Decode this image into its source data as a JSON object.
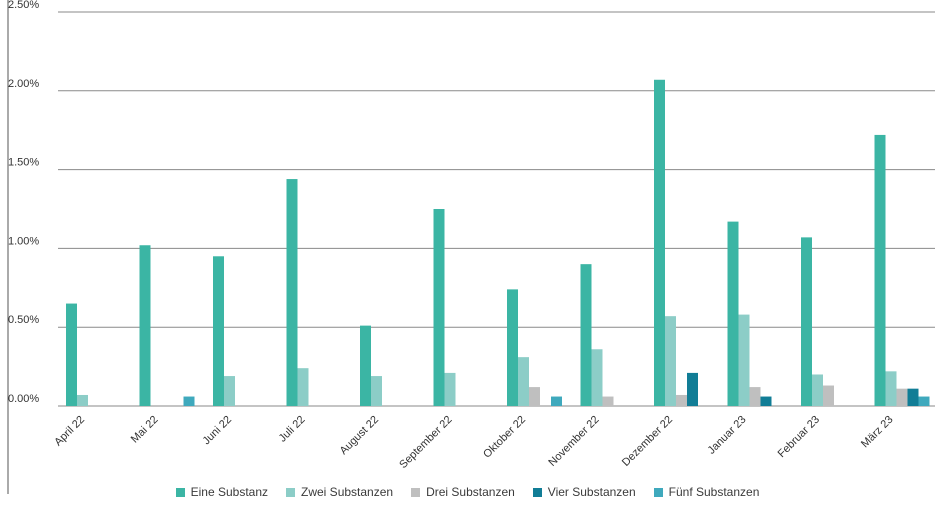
{
  "chart_data": {
    "type": "bar",
    "categories": [
      "April 22",
      "Mai 22",
      "Juni 22",
      "Juli 22",
      "August 22",
      "September 22",
      "Oktober 22",
      "November 22",
      "Dezember 22",
      "Januar 23",
      "Februar 23",
      "März 23"
    ],
    "y_tick_labels": [
      "0.00%",
      "0.50%",
      "1.00%",
      "1.50%",
      "2.00%",
      "2.50%"
    ],
    "ylim": [
      0,
      2.5
    ],
    "y_unit": "%",
    "grid": true,
    "legend_position": "bottom",
    "series": [
      {
        "name": "Eine Substanz",
        "color": "#3bb5a4",
        "values": [
          0.65,
          1.02,
          0.95,
          1.44,
          0.51,
          1.25,
          0.74,
          0.9,
          2.07,
          1.17,
          1.07,
          1.72
        ]
      },
      {
        "name": "Zwei Substanzen",
        "color": "#8ccdc7",
        "values": [
          0.07,
          0,
          0.19,
          0.24,
          0.19,
          0.21,
          0.31,
          0.36,
          0.57,
          0.58,
          0.2,
          0.22
        ]
      },
      {
        "name": "Drei Substanzen",
        "color": "#bfbfbf",
        "values": [
          0,
          0,
          0,
          0,
          0,
          0,
          0.12,
          0.06,
          0.07,
          0.12,
          0.13,
          0.11
        ]
      },
      {
        "name": "Vier Substanzen",
        "color": "#117d96",
        "values": [
          0,
          0,
          0,
          0,
          0,
          0,
          0,
          0,
          0.21,
          0.06,
          0,
          0.11
        ]
      },
      {
        "name": "Fünf Substanzen",
        "color": "#3fa9bd",
        "values": [
          0,
          0.06,
          0,
          0,
          0,
          0,
          0.06,
          0,
          0,
          0,
          0,
          0.06
        ]
      }
    ]
  }
}
